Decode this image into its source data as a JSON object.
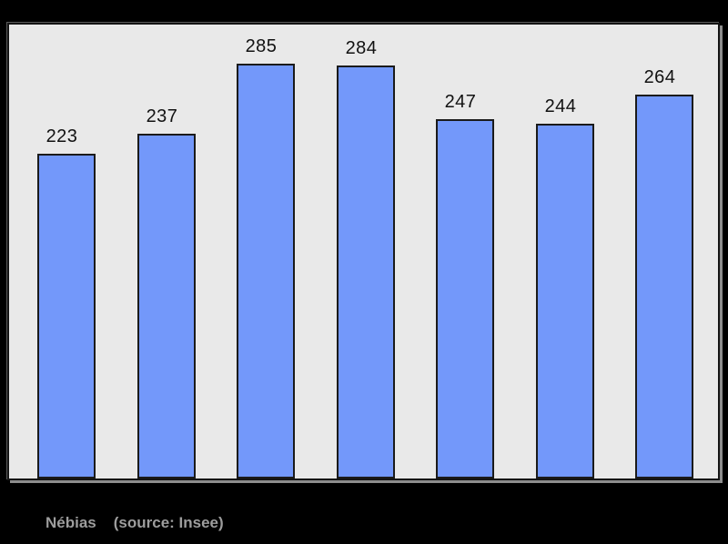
{
  "page": {
    "background_color": "#000000"
  },
  "caption": {
    "title": "Nébias",
    "source": "(source: Insee)",
    "color": "#9d9d9d"
  },
  "chart_data": {
    "type": "bar",
    "values": [
      223,
      237,
      285,
      284,
      247,
      244,
      264
    ],
    "data_labels": [
      "223",
      "237",
      "285",
      "284",
      "247",
      "244",
      "264"
    ],
    "title": "",
    "xlabel": "",
    "ylabel": "",
    "legend": "none",
    "grid": "off",
    "layout": "bars bottom-aligned inside bordered panel, value labels above each bar",
    "bar_fill_color": "#7398fa",
    "bar_border_color": "#1a1a1a",
    "panel_background_color": "#e9e9e9",
    "panel_border_color": "#141414",
    "label_color": "#111111"
  }
}
